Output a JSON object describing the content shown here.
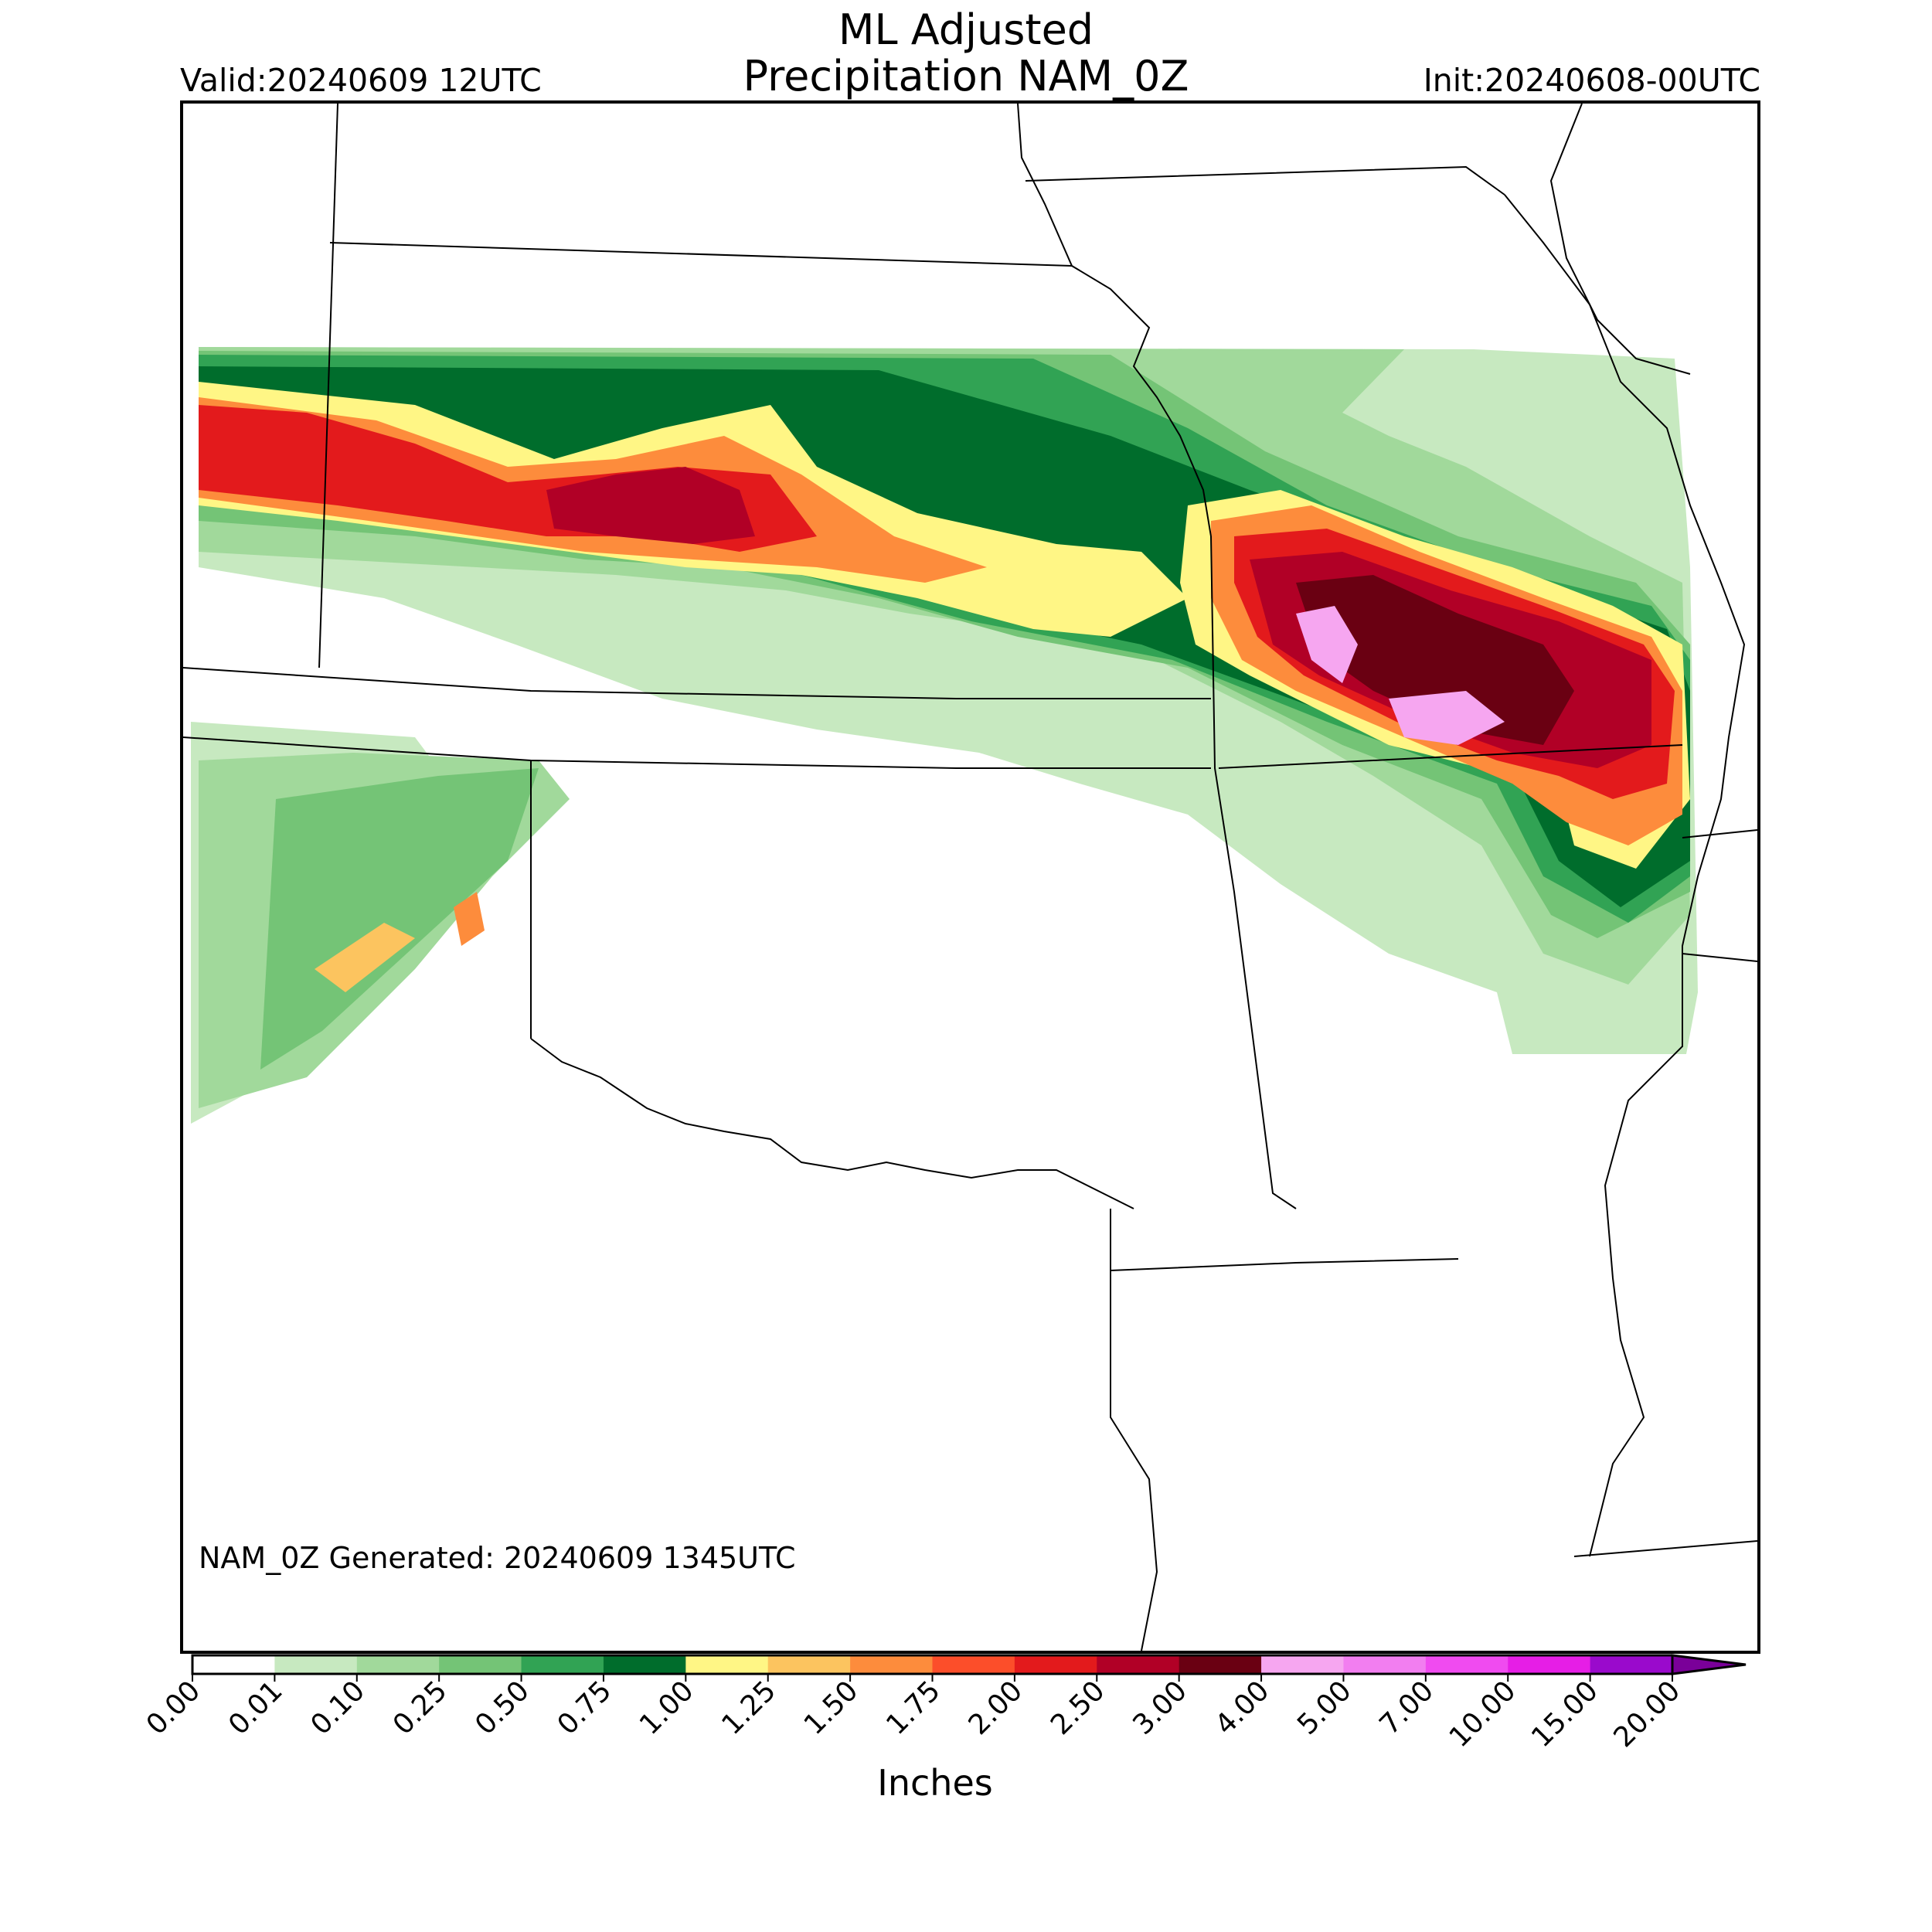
{
  "title": {
    "line1": "ML Adjusted",
    "line2": "Precipitation NAM_0Z"
  },
  "valid": "Valid:20240609 12UTC",
  "init": "Init:20240608-00UTC",
  "generated": "NAM_0Z Generated: 20240609 1345UTC",
  "colorbar": {
    "label": "Inches",
    "ticks": [
      "0.00",
      "0.01",
      "0.10",
      "0.25",
      "0.50",
      "0.75",
      "1.00",
      "1.25",
      "1.50",
      "1.75",
      "2.00",
      "2.50",
      "3.00",
      "4.00",
      "5.00",
      "7.00",
      "10.00",
      "15.00",
      "20.00"
    ],
    "colors": [
      "#ffffff",
      "#c7e9c0",
      "#a1d99b",
      "#74c476",
      "#31a354",
      "#006d2c",
      "#fff685",
      "#fcc45f",
      "#fd8c3c",
      "#fc4e2a",
      "#e31a1c",
      "#b10026",
      "#6a0012",
      "#f6a6f0",
      "#f27ef0",
      "#f04bf0",
      "#e61ee6",
      "#9a0acc"
    ],
    "extend_color": "#7a0099"
  },
  "map": {
    "colors": {
      "c01": "#c7e9c0",
      "c10": "#a1d99b",
      "c25": "#74c476",
      "c50": "#31a354",
      "c75": "#006d2c",
      "c100": "#fff685",
      "c125": "#fcc45f",
      "c150": "#fd8c3c",
      "c175": "#fc4e2a",
      "c200": "#e31a1c",
      "c250": "#b10026",
      "c300": "#6a0012",
      "c400": "#f6a6f0"
    }
  }
}
